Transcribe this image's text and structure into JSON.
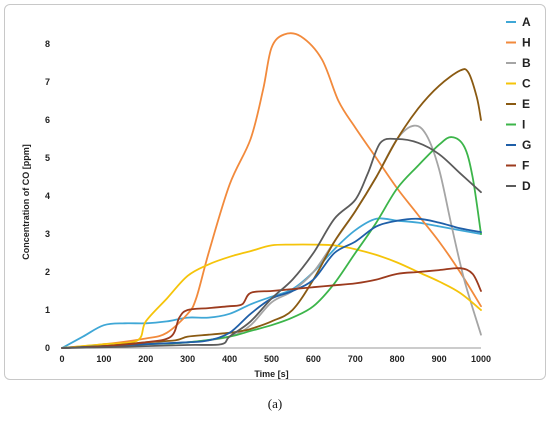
{
  "caption_text": "(a)",
  "chart_data": {
    "type": "line",
    "title": "",
    "xlabel": "Time [s]",
    "ylabel": "Concentration of CO [ppm]",
    "xlim": [
      0,
      1000
    ],
    "ylim": [
      0,
      8
    ],
    "xticks": [
      0,
      100,
      200,
      300,
      400,
      500,
      600,
      700,
      800,
      900,
      1000
    ],
    "yticks": [
      0,
      1,
      2,
      3,
      4,
      5,
      6,
      7,
      8
    ],
    "grid": false,
    "legend_position": "right",
    "series": [
      {
        "name": "A",
        "color": "#3fa7d6",
        "x": [
          0,
          50,
          100,
          150,
          200,
          250,
          300,
          350,
          400,
          450,
          500,
          550,
          600,
          650,
          700,
          750,
          800,
          850,
          900,
          950,
          1000
        ],
        "y": [
          0,
          0.3,
          0.6,
          0.65,
          0.65,
          0.7,
          0.8,
          0.8,
          0.9,
          1.15,
          1.35,
          1.55,
          2.0,
          2.6,
          3.1,
          3.4,
          3.35,
          3.3,
          3.2,
          3.1,
          3.0
        ]
      },
      {
        "name": "H",
        "color": "#f28a3c",
        "x": [
          0,
          100,
          200,
          250,
          300,
          320,
          350,
          400,
          450,
          480,
          500,
          530,
          570,
          620,
          660,
          700,
          750,
          800,
          850,
          900,
          950,
          1000
        ],
        "y": [
          0,
          0.1,
          0.25,
          0.4,
          0.9,
          1.3,
          2.5,
          4.3,
          5.5,
          6.8,
          7.9,
          8.25,
          8.2,
          7.6,
          6.5,
          5.8,
          5.0,
          4.2,
          3.5,
          2.8,
          2.0,
          1.1
        ]
      },
      {
        "name": "B",
        "color": "#a5a5a5",
        "x": [
          0,
          100,
          200,
          300,
          400,
          450,
          500,
          550,
          600,
          650,
          700,
          750,
          800,
          840,
          870,
          900,
          930,
          960,
          1000
        ],
        "y": [
          0,
          0.05,
          0.1,
          0.15,
          0.3,
          0.6,
          1.2,
          1.5,
          2.0,
          2.8,
          3.6,
          4.5,
          5.5,
          5.85,
          5.6,
          4.7,
          3.2,
          1.8,
          0.35
        ]
      },
      {
        "name": "C",
        "color": "#f5c40a",
        "x": [
          0,
          100,
          180,
          200,
          250,
          300,
          350,
          400,
          450,
          500,
          550,
          600,
          650,
          700,
          750,
          800,
          850,
          900,
          950,
          1000
        ],
        "y": [
          0,
          0.1,
          0.2,
          0.7,
          1.3,
          1.9,
          2.2,
          2.4,
          2.55,
          2.7,
          2.72,
          2.72,
          2.7,
          2.6,
          2.45,
          2.25,
          2.0,
          1.75,
          1.45,
          1.0
        ]
      },
      {
        "name": "E",
        "color": "#8a5a12",
        "x": [
          0,
          100,
          200,
          270,
          300,
          350,
          400,
          430,
          450,
          500,
          550,
          600,
          650,
          700,
          750,
          800,
          850,
          900,
          950,
          970,
          990,
          1000
        ],
        "y": [
          0,
          0.05,
          0.15,
          0.2,
          0.3,
          0.35,
          0.4,
          0.45,
          0.5,
          0.7,
          1.0,
          1.8,
          2.8,
          3.6,
          4.5,
          5.5,
          6.3,
          6.9,
          7.3,
          7.25,
          6.6,
          6.0
        ]
      },
      {
        "name": "I",
        "color": "#3cb54a",
        "x": [
          0,
          100,
          200,
          300,
          400,
          450,
          500,
          550,
          600,
          650,
          700,
          750,
          800,
          850,
          900,
          930,
          960,
          980,
          1000
        ],
        "y": [
          0,
          0.05,
          0.1,
          0.15,
          0.3,
          0.45,
          0.6,
          0.8,
          1.1,
          1.7,
          2.5,
          3.3,
          4.2,
          4.8,
          5.35,
          5.55,
          5.3,
          4.5,
          3.0
        ]
      },
      {
        "name": "G",
        "color": "#1f5fa8",
        "x": [
          0,
          100,
          200,
          300,
          350,
          400,
          450,
          500,
          550,
          600,
          650,
          700,
          750,
          800,
          850,
          900,
          950,
          1000
        ],
        "y": [
          0,
          0.05,
          0.1,
          0.15,
          0.2,
          0.4,
          0.9,
          1.3,
          1.5,
          1.8,
          2.5,
          2.8,
          3.2,
          3.35,
          3.4,
          3.3,
          3.15,
          3.05
        ]
      },
      {
        "name": "F",
        "color": "#9c3b1e",
        "x": [
          0,
          100,
          200,
          260,
          280,
          300,
          350,
          400,
          430,
          450,
          500,
          550,
          600,
          650,
          700,
          750,
          800,
          850,
          900,
          950,
          980,
          1000
        ],
        "y": [
          0,
          0.05,
          0.15,
          0.3,
          0.8,
          1.0,
          1.05,
          1.1,
          1.15,
          1.45,
          1.5,
          1.55,
          1.6,
          1.65,
          1.7,
          1.8,
          1.95,
          2.0,
          2.05,
          2.1,
          1.95,
          1.5
        ]
      },
      {
        "name": "D",
        "color": "#5b5b5b",
        "x": [
          0,
          100,
          200,
          300,
          380,
          400,
          450,
          500,
          550,
          600,
          650,
          700,
          730,
          760,
          800,
          850,
          900,
          950,
          1000
        ],
        "y": [
          0,
          0.02,
          0.05,
          0.08,
          0.1,
          0.3,
          0.7,
          1.3,
          1.8,
          2.5,
          3.4,
          3.9,
          4.6,
          5.4,
          5.5,
          5.4,
          5.1,
          4.6,
          4.1
        ]
      }
    ]
  }
}
